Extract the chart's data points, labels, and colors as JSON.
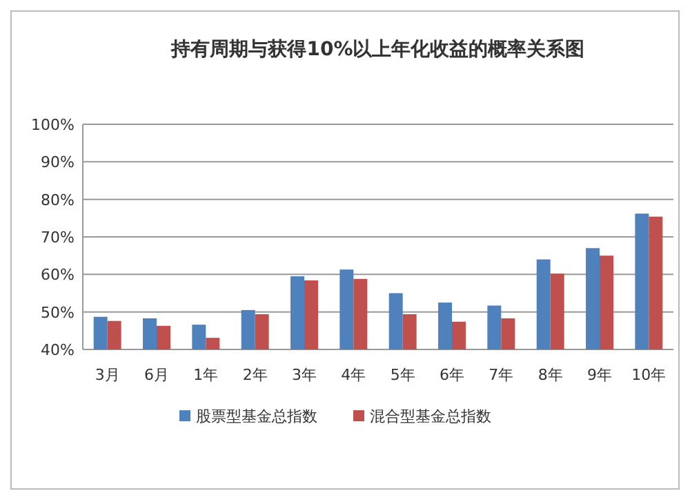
{
  "chart_data": {
    "type": "bar",
    "title": "持有周期与获得10%以上年化收益的概率关系图",
    "categories": [
      "3月",
      "6月",
      "1年",
      "2年",
      "3年",
      "4年",
      "5年",
      "6年",
      "7年",
      "8年",
      "9年",
      "10年"
    ],
    "series": [
      {
        "name": "股票型基金总指数",
        "color": "#4f81bd",
        "values": [
          48.7,
          48.3,
          46.6,
          50.5,
          59.5,
          61.3,
          55,
          52.5,
          51.7,
          64,
          67,
          76.2
        ]
      },
      {
        "name": "混合型基金总指数",
        "color": "#c0504d",
        "values": [
          47.6,
          46.3,
          43.1,
          49.4,
          58.4,
          58.8,
          49.4,
          47.4,
          48.3,
          60.2,
          65,
          75.4
        ]
      }
    ],
    "ylim": [
      40,
      100
    ],
    "yticks": [
      {
        "value": 40,
        "label": "40%"
      },
      {
        "value": 50,
        "label": "50%"
      },
      {
        "value": 60,
        "label": "60%"
      },
      {
        "value": 70,
        "label": "70%"
      },
      {
        "value": 80,
        "label": "80%"
      },
      {
        "value": 90,
        "label": "90%"
      },
      {
        "value": 100,
        "label": "100%"
      }
    ],
    "grid": "y",
    "legend": "bottom"
  }
}
